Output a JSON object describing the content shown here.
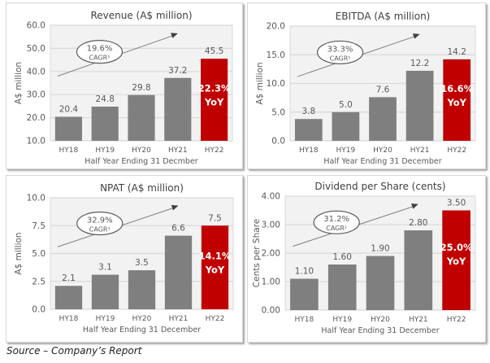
{
  "colors": {
    "bar": "#7f7f7f",
    "highlight": "#c00000",
    "plot_bg": "#f2f2f2",
    "grid": "#d9d9d9",
    "text": "#595959",
    "arrow": "#7f7f7f"
  },
  "chart_data": [
    {
      "type": "bar",
      "title": "Revenue (A$ million)",
      "xlabel": "Half Year Ending 31 Decmber",
      "ylabel": "A$ million",
      "categories": [
        "HY18",
        "HY19",
        "HY20",
        "HY21",
        "HY22"
      ],
      "values": [
        20.4,
        24.8,
        29.8,
        37.2,
        45.5
      ],
      "value_labels": [
        "20.4",
        "24.8",
        "29.8",
        "37.2",
        "45.5"
      ],
      "ylim": [
        10,
        60
      ],
      "yticks": [
        "10.0",
        "20.0",
        "30.0",
        "40.0",
        "50.0",
        "60.0"
      ],
      "grid": true,
      "highlight_index": 4,
      "annotations": {
        "cagr_value": "19.6%",
        "cagr_label": "CAGR¹",
        "yoy_value": "22.3%",
        "yoy_label": "YoY"
      }
    },
    {
      "type": "bar",
      "title": "EBITDA (A$ million)",
      "xlabel": "Half Year Ending 31 December",
      "ylabel": "A$ million",
      "categories": [
        "HY18",
        "HY19",
        "HY20",
        "HY21",
        "HY22"
      ],
      "values": [
        3.8,
        5.0,
        7.6,
        12.2,
        14.2
      ],
      "value_labels": [
        "3.8",
        "5.0",
        "7.6",
        "12.2",
        "14.2"
      ],
      "ylim": [
        0,
        20
      ],
      "yticks": [
        "0.0",
        "5.0",
        "10.0",
        "15.0",
        "20.0"
      ],
      "grid": true,
      "highlight_index": 4,
      "annotations": {
        "cagr_value": "33.3%",
        "cagr_label": "CAGR¹",
        "yoy_value": "16.6%",
        "yoy_label": "YoY"
      }
    },
    {
      "type": "bar",
      "title": "NPAT (A$ million)",
      "xlabel": "Half Year Ending 31 December",
      "ylabel": "A$ million",
      "categories": [
        "HY18",
        "HY19",
        "HY20",
        "HY21",
        "HY22"
      ],
      "values": [
        2.1,
        3.1,
        3.5,
        6.6,
        7.5
      ],
      "value_labels": [
        "2.1",
        "3.1",
        "3.5",
        "6.6",
        "7.5"
      ],
      "ylim": [
        0,
        10
      ],
      "yticks": [
        "0.0",
        "2.5",
        "5.0",
        "7.5",
        "10.0"
      ],
      "grid": true,
      "highlight_index": 4,
      "annotations": {
        "cagr_value": "32.9%",
        "cagr_label": "CAGR¹",
        "yoy_value": "14.1%",
        "yoy_label": "YoY"
      }
    },
    {
      "type": "bar",
      "title": "Dividend per Share (cents)",
      "xlabel": "Half Year Ending 31 December",
      "ylabel": "Cents per Share",
      "categories": [
        "HY18",
        "HY19",
        "HY20",
        "HY21",
        "HY22"
      ],
      "values": [
        1.1,
        1.6,
        1.9,
        2.8,
        3.5
      ],
      "value_labels": [
        "1.10",
        "1.60",
        "1.90",
        "2.80",
        "3.50"
      ],
      "ylim": [
        0,
        4
      ],
      "yticks": [
        "0.00",
        "1.00",
        "2.00",
        "3.00",
        "4.00"
      ],
      "grid": true,
      "highlight_index": 4,
      "annotations": {
        "cagr_value": "31.2%",
        "cagr_label": "CAGR¹",
        "yoy_value": "25.0%",
        "yoy_label": "YoY"
      }
    }
  ],
  "footer": {
    "source": "Source – Company’s Report"
  }
}
